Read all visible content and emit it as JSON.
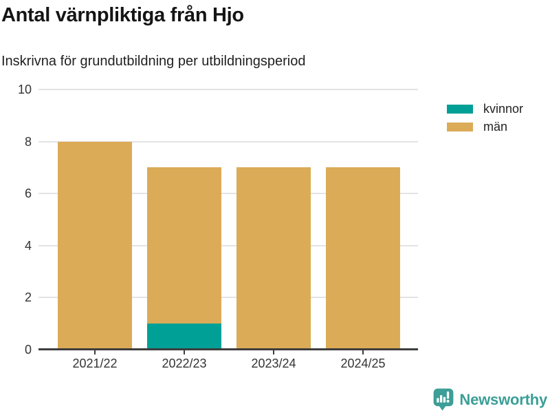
{
  "title": "Antal värnpliktiga från Hjo",
  "subtitle": "Inskrivna för grundutbildning per utbildningsperiod",
  "colors": {
    "kvinnor": "#00a096",
    "man": "#dbab57",
    "axis": "#3d3d3d",
    "grid": "#e3e3e3",
    "tick_text": "#333333",
    "logo_teal": "#3b9e97"
  },
  "chart_data": {
    "type": "bar",
    "stacked": true,
    "title": "Antal värnpliktiga från Hjo",
    "subtitle": "Inskrivna för grundutbildning per utbildningsperiod",
    "categories": [
      "2021/22",
      "2022/23",
      "2023/24",
      "2024/25"
    ],
    "series": [
      {
        "name": "kvinnor",
        "color": "#00a096",
        "values": [
          0,
          1,
          0,
          0
        ]
      },
      {
        "name": "män",
        "color": "#dbab57",
        "values": [
          8,
          6,
          7,
          7
        ]
      }
    ],
    "totals": [
      8,
      7,
      7,
      7
    ],
    "xlabel": "",
    "ylabel": "",
    "ylim": [
      0,
      10
    ],
    "yticks": [
      0,
      2,
      4,
      6,
      8,
      10
    ],
    "grid": "horizontal",
    "legend_position": "right-top"
  },
  "legend": {
    "items": [
      {
        "label": "kvinnor",
        "color": "#00a096"
      },
      {
        "label": "män",
        "color": "#dbab57"
      }
    ]
  },
  "footer": {
    "brand": "Newsworthy"
  }
}
